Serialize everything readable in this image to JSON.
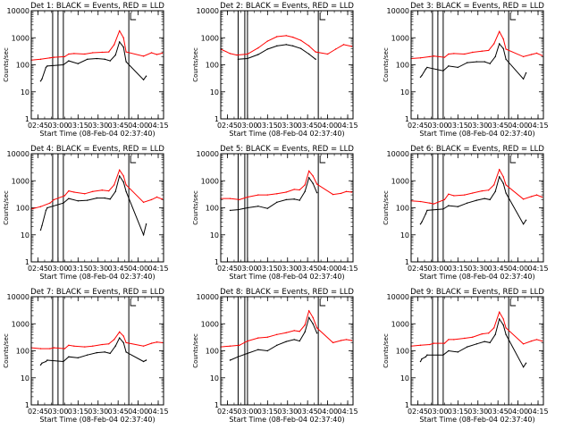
{
  "figure": {
    "ylabel": "Counts/sec",
    "xlabel": "Start Time (08-Feb-04 02:37:40)",
    "colors": {
      "events": "#000000",
      "lld": "#ff0000",
      "axes": "#000000"
    }
  },
  "chart_data": [
    {
      "type": "line",
      "title": "Det 1: BLACK = Events, RED = LLD",
      "xlabel": "Start Time (08-Feb-04 02:37:40)",
      "ylabel": "Counts/sec",
      "yscale": "log",
      "ylim": [
        1,
        10000
      ],
      "yticks": [
        "1",
        "10",
        "100",
        "1000",
        "10000"
      ],
      "xlim": [
        "02:40",
        "04:19"
      ],
      "xticks": [
        "02:45",
        "03:00",
        "03:15",
        "03:30",
        "03:45",
        "04:00",
        "04:15"
      ],
      "markers": [
        "02:56",
        "03:00",
        "03:04",
        "03:53"
      ],
      "series": [
        {
          "name": "LLD",
          "x": [
            "02:40",
            "02:47",
            "02:54",
            "02:57",
            "03:05",
            "03:08",
            "03:12",
            "03:20",
            "03:26",
            "03:33",
            "03:38",
            "03:42",
            "03:46",
            "03:49",
            "03:51",
            "04:04",
            "04:10",
            "04:14",
            "04:18"
          ],
          "values": [
            150,
            160,
            180,
            190,
            200,
            250,
            260,
            250,
            280,
            290,
            300,
            550,
            1800,
            1000,
            300,
            210,
            280,
            240,
            270
          ]
        },
        {
          "name": "Events",
          "x": [
            "02:47",
            "02:48",
            "02:51",
            "02:52",
            "03:04",
            "03:08",
            "03:15",
            "03:22",
            "03:29",
            "03:35",
            "03:39",
            "03:43",
            "03:46",
            "03:49",
            "03:51",
            "04:04",
            "04:06"
          ],
          "values": [
            25,
            30,
            80,
            90,
            100,
            140,
            110,
            160,
            170,
            160,
            140,
            230,
            700,
            450,
            130,
            28,
            38
          ]
        }
      ]
    },
    {
      "type": "line",
      "title": "Det 2: BLACK = Events, RED = LLD",
      "xlabel": "Start Time (08-Feb-04 02:37:40)",
      "ylabel": "Counts/sec",
      "yscale": "log",
      "ylim": [
        1,
        10000
      ],
      "yticks": [
        "1",
        "10",
        "100",
        "1000",
        "10000"
      ],
      "xlim": [
        "02:40",
        "04:19"
      ],
      "xticks": [
        "02:45",
        "03:00",
        "03:15",
        "03:30",
        "03:45",
        "04:00",
        "04:15"
      ],
      "markers": [
        "02:53",
        "02:58",
        "03:00",
        "03:53"
      ],
      "series": [
        {
          "name": "LLD",
          "x": [
            "02:40",
            "02:47",
            "02:52",
            "03:00",
            "03:08",
            "03:15",
            "03:22",
            "03:29",
            "03:34",
            "03:40",
            "03:46",
            "03:51",
            "04:00",
            "04:06",
            "04:12",
            "04:18"
          ],
          "values": [
            380,
            260,
            230,
            250,
            420,
            750,
            1100,
            1200,
            1050,
            800,
            500,
            300,
            250,
            380,
            560,
            480
          ]
        },
        {
          "name": "Events",
          "x": [
            "02:53",
            "03:00",
            "03:08",
            "03:15",
            "03:22",
            "03:29",
            "03:34",
            "03:40",
            "03:46",
            "03:51"
          ],
          "values": [
            160,
            170,
            240,
            380,
            500,
            560,
            500,
            400,
            250,
            160
          ]
        }
      ]
    },
    {
      "type": "line",
      "title": "Det 3: BLACK = Events, RED = LLD",
      "xlabel": "Start Time (08-Feb-04 02:37:40)",
      "ylabel": "Counts/sec",
      "yscale": "log",
      "ylim": [
        1,
        10000
      ],
      "yticks": [
        "1",
        "10",
        "100",
        "1000",
        "10000"
      ],
      "xlim": [
        "02:40",
        "04:19"
      ],
      "xticks": [
        "02:45",
        "03:00",
        "03:15",
        "03:30",
        "03:45",
        "04:00",
        "04:15"
      ],
      "markers": [
        "02:56",
        "03:00",
        "03:04",
        "03:53"
      ],
      "series": [
        {
          "name": "LLD",
          "x": [
            "02:40",
            "02:47",
            "02:54",
            "02:57",
            "03:05",
            "03:08",
            "03:12",
            "03:20",
            "03:26",
            "03:33",
            "03:38",
            "03:42",
            "03:46",
            "03:49",
            "03:51",
            "04:04",
            "04:10",
            "04:14",
            "04:18"
          ],
          "values": [
            170,
            180,
            200,
            210,
            190,
            250,
            260,
            250,
            290,
            320,
            340,
            600,
            1700,
            900,
            380,
            200,
            240,
            270,
            220
          ]
        },
        {
          "name": "Events",
          "x": [
            "02:47",
            "02:48",
            "02:51",
            "02:52",
            "03:04",
            "03:08",
            "03:15",
            "03:22",
            "03:29",
            "03:35",
            "03:39",
            "03:43",
            "03:46",
            "03:49",
            "03:51",
            "04:04",
            "04:06"
          ],
          "values": [
            35,
            40,
            70,
            80,
            60,
            90,
            80,
            120,
            130,
            130,
            110,
            200,
            600,
            400,
            160,
            30,
            50
          ]
        }
      ]
    },
    {
      "type": "line",
      "title": "Det 4: BLACK = Events, RED = LLD",
      "xlabel": "Start Time (08-Feb-04 02:37:40)",
      "ylabel": "Counts/sec",
      "yscale": "log",
      "ylim": [
        1,
        10000
      ],
      "yticks": [
        "1",
        "10",
        "100",
        "1000",
        "10000"
      ],
      "xlim": [
        "02:40",
        "04:19"
      ],
      "xticks": [
        "02:45",
        "03:00",
        "03:15",
        "03:30",
        "03:45",
        "04:00",
        "04:15"
      ],
      "markers": [
        "02:56",
        "03:00",
        "03:04",
        "03:53"
      ],
      "series": [
        {
          "name": "LLD",
          "x": [
            "02:40",
            "02:47",
            "02:54",
            "02:57",
            "03:05",
            "03:08",
            "03:12",
            "03:20",
            "03:26",
            "03:33",
            "03:38",
            "03:42",
            "03:46",
            "03:49",
            "03:51",
            "04:04",
            "04:10",
            "04:14",
            "04:18"
          ],
          "values": [
            90,
            110,
            150,
            200,
            280,
            420,
            380,
            330,
            400,
            450,
            420,
            700,
            2500,
            1500,
            700,
            160,
            200,
            250,
            210
          ]
        },
        {
          "name": "Events",
          "x": [
            "02:47",
            "02:48",
            "02:51",
            "02:52",
            "03:04",
            "03:08",
            "03:15",
            "03:22",
            "03:29",
            "03:35",
            "03:39",
            "03:43",
            "03:46",
            "03:49",
            "03:51",
            "04:04",
            "04:06"
          ],
          "values": [
            15,
            22,
            80,
            100,
            150,
            220,
            180,
            190,
            230,
            230,
            210,
            400,
            1500,
            900,
            400,
            10,
            25
          ]
        }
      ]
    },
    {
      "type": "line",
      "title": "Det 5: BLACK = Events, RED = LLD",
      "xlabel": "Start Time (08-Feb-04 02:37:40)",
      "ylabel": "Counts/sec",
      "yscale": "log",
      "ylim": [
        1,
        10000
      ],
      "yticks": [
        "1",
        "10",
        "100",
        "1000",
        "10000"
      ],
      "xlim": [
        "02:40",
        "04:19"
      ],
      "xticks": [
        "02:45",
        "03:00",
        "03:15",
        "03:30",
        "03:45",
        "04:00",
        "04:15"
      ],
      "markers": [
        "02:53",
        "02:58",
        "03:00",
        "03:53"
      ],
      "series": [
        {
          "name": "LLD",
          "x": [
            "02:40",
            "02:47",
            "02:54",
            "03:00",
            "03:08",
            "03:15",
            "03:22",
            "03:29",
            "03:35",
            "03:39",
            "03:43",
            "03:46",
            "03:49",
            "03:52",
            "04:04",
            "04:10",
            "04:14",
            "04:18"
          ],
          "values": [
            220,
            220,
            200,
            250,
            300,
            300,
            330,
            380,
            480,
            460,
            700,
            2300,
            1500,
            750,
            310,
            340,
            400,
            380
          ]
        },
        {
          "name": "Events",
          "x": [
            "02:47",
            "02:53",
            "03:00",
            "03:08",
            "03:15",
            "03:22",
            "03:29",
            "03:35",
            "03:39",
            "03:43",
            "03:46",
            "03:49",
            "03:52"
          ],
          "values": [
            80,
            85,
            100,
            115,
            95,
            160,
            200,
            210,
            190,
            400,
            1300,
            800,
            360
          ]
        }
      ]
    },
    {
      "type": "line",
      "title": "Det 6: BLACK = Events, RED = LLD",
      "xlabel": "Start Time (08-Feb-04 02:37:40)",
      "ylabel": "Counts/sec",
      "yscale": "log",
      "ylim": [
        1,
        10000
      ],
      "yticks": [
        "1",
        "10",
        "100",
        "1000",
        "10000"
      ],
      "xlim": [
        "02:40",
        "04:19"
      ],
      "xticks": [
        "02:45",
        "03:00",
        "03:15",
        "03:30",
        "03:45",
        "04:00",
        "04:15"
      ],
      "markers": [
        "02:56",
        "03:00",
        "03:04",
        "03:53"
      ],
      "series": [
        {
          "name": "LLD",
          "x": [
            "02:40",
            "02:47",
            "02:54",
            "02:57",
            "03:05",
            "03:08",
            "03:12",
            "03:20",
            "03:26",
            "03:33",
            "03:38",
            "03:42",
            "03:46",
            "03:49",
            "03:51",
            "04:04",
            "04:10",
            "04:14",
            "04:18"
          ],
          "values": [
            180,
            170,
            150,
            140,
            200,
            320,
            280,
            300,
            350,
            420,
            450,
            700,
            2600,
            1400,
            700,
            210,
            260,
            300,
            250
          ]
        },
        {
          "name": "Events",
          "x": [
            "02:47",
            "02:48",
            "02:51",
            "02:52",
            "03:04",
            "03:08",
            "03:15",
            "03:22",
            "03:29",
            "03:35",
            "03:39",
            "03:43",
            "03:46",
            "03:49",
            "03:51",
            "04:04",
            "04:06"
          ],
          "values": [
            25,
            30,
            60,
            80,
            90,
            120,
            110,
            150,
            190,
            220,
            200,
            400,
            1400,
            800,
            350,
            25,
            35
          ]
        }
      ]
    },
    {
      "type": "line",
      "title": "Det 7: BLACK = Events, RED = LLD",
      "xlabel": "Start Time (08-Feb-04 02:37:40)",
      "ylabel": "Counts/sec",
      "yscale": "log",
      "ylim": [
        1,
        10000
      ],
      "yticks": [
        "1",
        "10",
        "100",
        "1000",
        "10000"
      ],
      "xlim": [
        "02:40",
        "04:19"
      ],
      "xticks": [
        "02:45",
        "03:00",
        "03:15",
        "03:30",
        "03:45",
        "04:00",
        "04:15"
      ],
      "markers": [
        "02:56",
        "03:00",
        "03:04",
        "03:53"
      ],
      "series": [
        {
          "name": "LLD",
          "x": [
            "02:40",
            "02:47",
            "02:54",
            "02:57",
            "03:05",
            "03:08",
            "03:12",
            "03:20",
            "03:26",
            "03:33",
            "03:38",
            "03:42",
            "03:46",
            "03:49",
            "03:51",
            "04:04",
            "04:10",
            "04:14",
            "04:18"
          ],
          "values": [
            130,
            120,
            120,
            130,
            120,
            160,
            150,
            140,
            150,
            170,
            180,
            260,
            500,
            350,
            200,
            150,
            190,
            210,
            200
          ]
        },
        {
          "name": "Events",
          "x": [
            "02:47",
            "02:48",
            "02:51",
            "02:52",
            "03:04",
            "03:08",
            "03:15",
            "03:22",
            "03:29",
            "03:35",
            "03:39",
            "03:43",
            "03:46",
            "03:49",
            "03:51",
            "04:04",
            "04:06"
          ],
          "values": [
            30,
            35,
            40,
            45,
            40,
            60,
            55,
            70,
            85,
            90,
            80,
            150,
            300,
            200,
            90,
            40,
            45
          ]
        }
      ]
    },
    {
      "type": "line",
      "title": "Det 8: BLACK = Events, RED = LLD",
      "xlabel": "Start Time (08-Feb-04 02:37:40)",
      "ylabel": "Counts/sec",
      "yscale": "log",
      "ylim": [
        1,
        10000
      ],
      "yticks": [
        "1",
        "10",
        "100",
        "1000",
        "10000"
      ],
      "xlim": [
        "02:40",
        "04:19"
      ],
      "xticks": [
        "02:45",
        "03:00",
        "03:15",
        "03:30",
        "03:45",
        "04:00",
        "04:15"
      ],
      "markers": [
        "02:53",
        "02:58",
        "03:00",
        "03:53"
      ],
      "series": [
        {
          "name": "LLD",
          "x": [
            "02:40",
            "02:47",
            "02:54",
            "03:00",
            "03:08",
            "03:15",
            "03:22",
            "03:29",
            "03:35",
            "03:39",
            "03:43",
            "03:46",
            "03:49",
            "03:52",
            "04:04",
            "04:10",
            "04:14",
            "04:18"
          ],
          "values": [
            140,
            150,
            160,
            230,
            300,
            320,
            400,
            470,
            560,
            520,
            900,
            3000,
            1700,
            700,
            200,
            240,
            260,
            240
          ]
        },
        {
          "name": "Events",
          "x": [
            "02:47",
            "02:53",
            "03:00",
            "03:08",
            "03:15",
            "03:22",
            "03:29",
            "03:35",
            "03:39",
            "03:43",
            "03:46",
            "03:49",
            "03:52"
          ],
          "values": [
            45,
            60,
            80,
            110,
            100,
            160,
            220,
            260,
            230,
            500,
            1700,
            1000,
            450
          ]
        }
      ]
    },
    {
      "type": "line",
      "title": "Det 9: BLACK = Events, RED = LLD",
      "xlabel": "Start Time (08-Feb-04 02:37:40)",
      "ylabel": "Counts/sec",
      "yscale": "log",
      "ylim": [
        1,
        10000
      ],
      "yticks": [
        "1",
        "10",
        "100",
        "1000",
        "10000"
      ],
      "xlim": [
        "02:40",
        "04:19"
      ],
      "xticks": [
        "02:45",
        "03:00",
        "03:15",
        "03:30",
        "03:45",
        "04:00",
        "04:15"
      ],
      "markers": [
        "02:56",
        "03:00",
        "03:04",
        "03:53"
      ],
      "series": [
        {
          "name": "LLD",
          "x": [
            "02:40",
            "02:47",
            "02:54",
            "02:57",
            "03:05",
            "03:08",
            "03:12",
            "03:20",
            "03:26",
            "03:33",
            "03:38",
            "03:42",
            "03:46",
            "03:49",
            "03:51",
            "04:04",
            "04:10",
            "04:14",
            "04:18"
          ],
          "values": [
            150,
            160,
            170,
            190,
            190,
            260,
            260,
            290,
            320,
            420,
            450,
            700,
            2700,
            1500,
            700,
            180,
            230,
            260,
            230
          ]
        },
        {
          "name": "Events",
          "x": [
            "02:47",
            "02:48",
            "02:51",
            "02:52",
            "03:04",
            "03:08",
            "03:15",
            "03:22",
            "03:29",
            "03:35",
            "03:39",
            "03:43",
            "03:46",
            "03:49",
            "03:51",
            "04:04",
            "04:06"
          ],
          "values": [
            40,
            50,
            60,
            70,
            70,
            100,
            90,
            140,
            180,
            220,
            200,
            400,
            1500,
            900,
            400,
            25,
            35
          ]
        }
      ]
    }
  ]
}
